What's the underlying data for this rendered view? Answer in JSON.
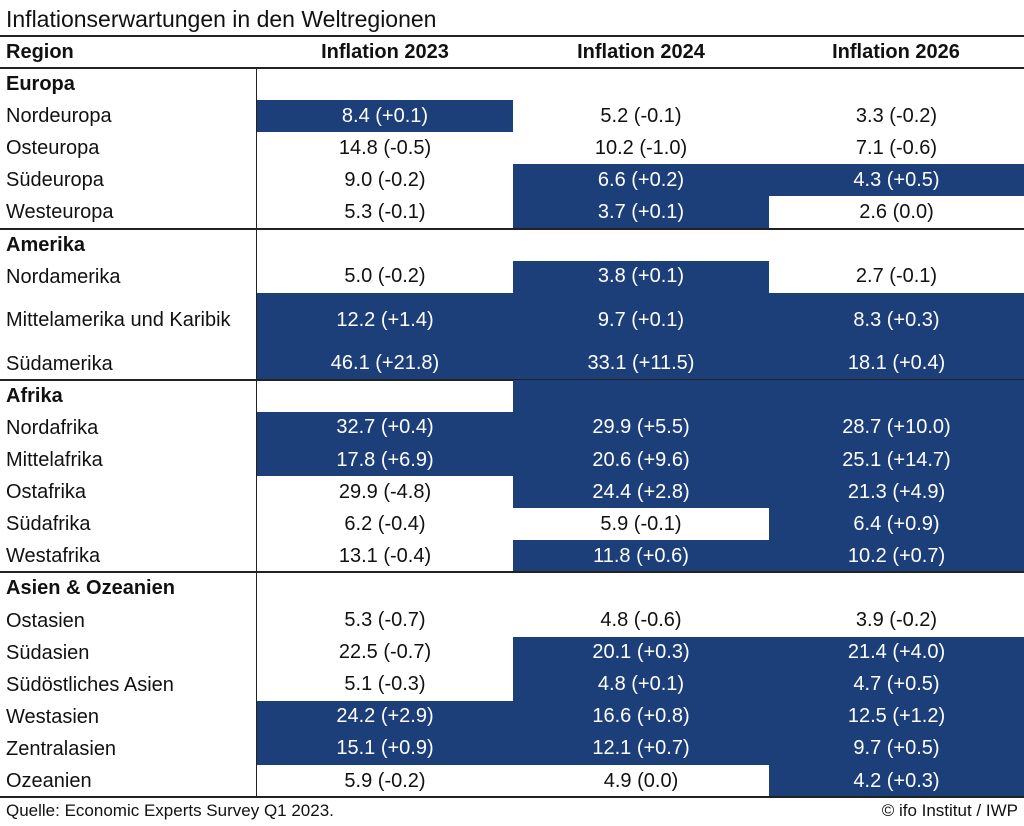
{
  "title": "Inflationserwartungen in den Weltregionen",
  "columns": [
    "Region",
    "Inflation 2023",
    "Inflation 2024",
    "Inflation 2026"
  ],
  "colors": {
    "highlight": "#1c3f7a",
    "highlight_text": "#ffffff",
    "text": "#111111"
  },
  "chart_data": {
    "type": "table",
    "title": "Inflationserwartungen in den Weltregionen",
    "headers": [
      "Region",
      "Inflation 2023",
      "Inflation 2024",
      "Inflation 2026"
    ],
    "groups": [
      {
        "name": "Europa",
        "rows": [
          {
            "region": "Nordeuropa",
            "values": [
              "8.4 (+0.1)",
              "5.2 (-0.1)",
              "3.3 (-0.2)"
            ],
            "highlight": [
              true,
              false,
              false
            ]
          },
          {
            "region": "Osteuropa",
            "values": [
              "14.8 (-0.5)",
              "10.2 (-1.0)",
              "7.1 (-0.6)"
            ],
            "highlight": [
              false,
              false,
              false
            ]
          },
          {
            "region": "Südeuropa",
            "values": [
              "9.0 (-0.2)",
              "6.6 (+0.2)",
              "4.3 (+0.5)"
            ],
            "highlight": [
              false,
              true,
              true
            ]
          },
          {
            "region": "Westeuropa",
            "values": [
              "5.3 (-0.1)",
              "3.7 (+0.1)",
              "2.6 (0.0)"
            ],
            "highlight": [
              false,
              true,
              false
            ]
          }
        ]
      },
      {
        "name": "Amerika",
        "rows": [
          {
            "region": "Nordamerika",
            "values": [
              "5.0 (-0.2)",
              "3.8 (+0.1)",
              "2.7 (-0.1)"
            ],
            "highlight": [
              false,
              true,
              false
            ]
          },
          {
            "region": "Mittelamerika und Karibik",
            "values": [
              "12.2 (+1.4)",
              "9.7 (+0.1)",
              "8.3 (+0.3)"
            ],
            "highlight": [
              true,
              true,
              true
            ]
          },
          {
            "region": "Südamerika",
            "values": [
              "46.1 (+21.8)",
              "33.1 (+11.5)",
              "18.1 (+0.4)"
            ],
            "highlight": [
              true,
              true,
              true
            ]
          }
        ]
      },
      {
        "name": "Afrika",
        "header_highlight": [
          false,
          true,
          true
        ],
        "rows": [
          {
            "region": "Nordafrika",
            "values": [
              "32.7 (+0.4)",
              "29.9 (+5.5)",
              "28.7 (+10.0)"
            ],
            "highlight": [
              true,
              true,
              true
            ]
          },
          {
            "region": "Mittelafrika",
            "values": [
              "17.8 (+6.9)",
              "20.6 (+9.6)",
              "25.1 (+14.7)"
            ],
            "highlight": [
              true,
              true,
              true
            ]
          },
          {
            "region": "Ostafrika",
            "values": [
              "29.9 (-4.8)",
              "24.4 (+2.8)",
              "21.3 (+4.9)"
            ],
            "highlight": [
              false,
              true,
              true
            ]
          },
          {
            "region": "Südafrika",
            "values": [
              "6.2 (-0.4)",
              "5.9 (-0.1)",
              "6.4 (+0.9)"
            ],
            "highlight": [
              false,
              false,
              true
            ]
          },
          {
            "region": "Westafrika",
            "values": [
              "13.1 (-0.4)",
              "11.8 (+0.6)",
              "10.2 (+0.7)"
            ],
            "highlight": [
              false,
              true,
              true
            ]
          }
        ]
      },
      {
        "name": "Asien & Ozeanien",
        "rows": [
          {
            "region": "Ostasien",
            "values": [
              "5.3 (-0.7)",
              "4.8 (-0.6)",
              "3.9 (-0.2)"
            ],
            "highlight": [
              false,
              false,
              false
            ]
          },
          {
            "region": "Südasien",
            "values": [
              "22.5 (-0.7)",
              "20.1 (+0.3)",
              "21.4 (+4.0)"
            ],
            "highlight": [
              false,
              true,
              true
            ]
          },
          {
            "region": "Südöstliches Asien",
            "values": [
              "5.1 (-0.3)",
              "4.8 (+0.1)",
              "4.7 (+0.5)"
            ],
            "highlight": [
              false,
              true,
              true
            ]
          },
          {
            "region": "Westasien",
            "values": [
              "24.2 (+2.9)",
              "16.6 (+0.8)",
              "12.5 (+1.2)"
            ],
            "highlight": [
              true,
              true,
              true
            ]
          },
          {
            "region": "Zentralasien",
            "values": [
              "15.1 (+0.9)",
              "12.1 (+0.7)",
              "9.7 (+0.5)"
            ],
            "highlight": [
              true,
              true,
              true
            ]
          },
          {
            "region": "Ozeanien",
            "values": [
              "5.9 (-0.2)",
              "4.9 (0.0)",
              "4.2 (+0.3)"
            ],
            "highlight": [
              false,
              false,
              true
            ]
          }
        ]
      }
    ]
  },
  "footer": {
    "source": "Quelle: Economic Experts Survey Q1 2023.",
    "copyright": "© ifo Institut / IWP"
  }
}
